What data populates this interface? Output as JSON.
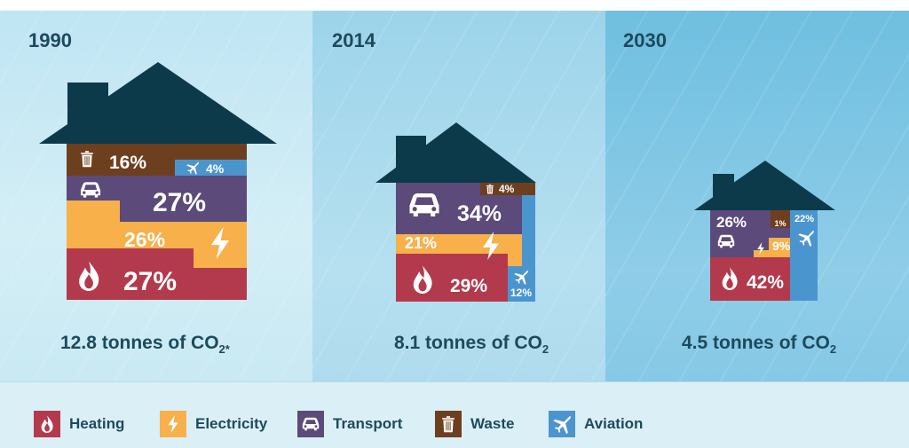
{
  "colors": {
    "heating": "#b23a4c",
    "electricity": "#f7b04a",
    "transport": "#5b4a7a",
    "waste": "#6e3f1e",
    "aviation": "#4b95cf",
    "roof": "#0d3a4b",
    "text_dark": "#1d4a5c"
  },
  "panels": [
    {
      "year": "1990",
      "total": "12.8 tonnes of CO",
      "sub": "2*"
    },
    {
      "year": "2014",
      "total": "8.1 tonnes of CO",
      "sub": "2"
    },
    {
      "year": "2030",
      "total": "4.5 tonnes of CO",
      "sub": "2"
    }
  ],
  "legend": [
    {
      "key": "heating",
      "label": "Heating",
      "icon": "flame-icon"
    },
    {
      "key": "electricity",
      "label": "Electricity",
      "icon": "lightning-icon"
    },
    {
      "key": "transport",
      "label": "Transport",
      "icon": "car-icon"
    },
    {
      "key": "waste",
      "label": "Waste",
      "icon": "trash-icon"
    },
    {
      "key": "aviation",
      "label": "Aviation",
      "icon": "plane-icon"
    }
  ],
  "chart_data": [
    {
      "type": "bar",
      "title": "1990",
      "categories": [
        "Heating",
        "Electricity",
        "Transport",
        "Waste",
        "Aviation"
      ],
      "values": [
        27,
        26,
        27,
        16,
        4
      ],
      "unit": "%",
      "total": 12.8
    },
    {
      "type": "bar",
      "title": "2014",
      "categories": [
        "Heating",
        "Electricity",
        "Transport",
        "Waste",
        "Aviation"
      ],
      "values": [
        29,
        21,
        34,
        4,
        12
      ],
      "unit": "%",
      "total": 8.1
    },
    {
      "type": "bar",
      "title": "2030",
      "categories": [
        "Heating",
        "Electricity",
        "Transport",
        "Waste",
        "Aviation"
      ],
      "values": [
        42,
        9,
        26,
        1,
        22
      ],
      "unit": "%",
      "total": 4.5
    }
  ]
}
